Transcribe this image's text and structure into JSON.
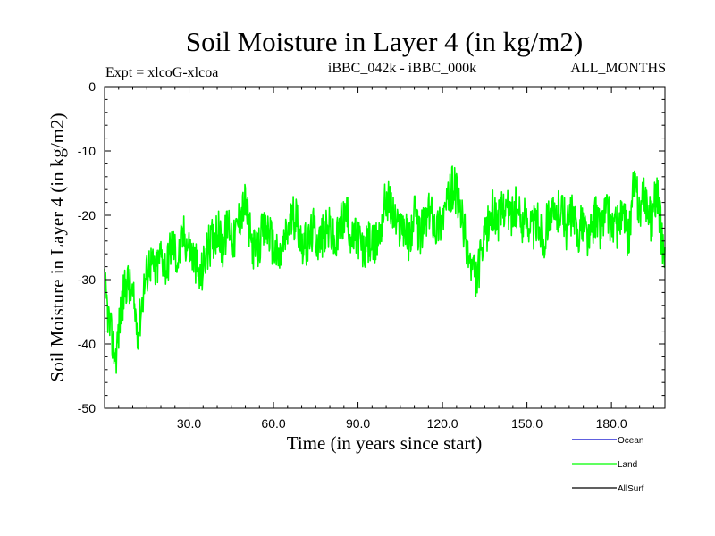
{
  "chart_data": {
    "type": "line",
    "title": "Soil Moisture in Layer 4 (in kg/m2)",
    "subtitle_left": "Expt = xlcoG-xlcoa",
    "subtitle_center": "iBBC_042k - iBBC_000k",
    "subtitle_right": "ALL_MONTHS",
    "xlabel": "Time (in years since start)",
    "ylabel": "Soil Moisture in Layer 4 (in kg/m2)",
    "xlim": [
      0,
      199
    ],
    "ylim": [
      -50,
      0
    ],
    "x_ticks": [
      30,
      60,
      90,
      120,
      150,
      180
    ],
    "x_tick_labels": [
      "30.0",
      "60.0",
      "90.0",
      "120.0",
      "150.0",
      "180.0"
    ],
    "y_ticks": [
      0,
      -10,
      -20,
      -30,
      -40,
      -50
    ],
    "y_tick_labels": [
      "0",
      "-10",
      "-20",
      "-30",
      "-40",
      "-50"
    ],
    "legend_position": "bottom-right",
    "series": [
      {
        "name": "Ocean",
        "color": "#0000cc",
        "points": []
      },
      {
        "name": "Land",
        "color": "#00ff00",
        "points": [
          [
            0,
            -31
          ],
          [
            2,
            -38
          ],
          [
            4,
            -42
          ],
          [
            6,
            -34
          ],
          [
            8,
            -30
          ],
          [
            10,
            -33
          ],
          [
            12,
            -38
          ],
          [
            14,
            -31
          ],
          [
            16,
            -27
          ],
          [
            18,
            -29
          ],
          [
            20,
            -26
          ],
          [
            22,
            -28
          ],
          [
            24,
            -24
          ],
          [
            26,
            -27
          ],
          [
            28,
            -23
          ],
          [
            30,
            -25
          ],
          [
            32,
            -27
          ],
          [
            34,
            -30
          ],
          [
            36,
            -26
          ],
          [
            38,
            -24
          ],
          [
            40,
            -22
          ],
          [
            42,
            -25
          ],
          [
            44,
            -21
          ],
          [
            46,
            -24
          ],
          [
            48,
            -20
          ],
          [
            50,
            -18
          ],
          [
            52,
            -24
          ],
          [
            54,
            -26
          ],
          [
            56,
            -23
          ],
          [
            58,
            -22
          ],
          [
            60,
            -25
          ],
          [
            62,
            -27
          ],
          [
            64,
            -24
          ],
          [
            66,
            -21
          ],
          [
            68,
            -20
          ],
          [
            70,
            -24
          ],
          [
            72,
            -25
          ],
          [
            74,
            -22
          ],
          [
            76,
            -24
          ],
          [
            78,
            -23
          ],
          [
            80,
            -22
          ],
          [
            82,
            -25
          ],
          [
            84,
            -21
          ],
          [
            86,
            -20
          ],
          [
            88,
            -24
          ],
          [
            90,
            -23
          ],
          [
            92,
            -26
          ],
          [
            94,
            -24
          ],
          [
            96,
            -25
          ],
          [
            98,
            -22
          ],
          [
            100,
            -17
          ],
          [
            102,
            -19
          ],
          [
            104,
            -22
          ],
          [
            106,
            -21
          ],
          [
            108,
            -24
          ],
          [
            110,
            -20
          ],
          [
            112,
            -23
          ],
          [
            114,
            -21
          ],
          [
            116,
            -19
          ],
          [
            118,
            -22
          ],
          [
            120,
            -20
          ],
          [
            122,
            -18
          ],
          [
            124,
            -15
          ],
          [
            126,
            -19
          ],
          [
            128,
            -23
          ],
          [
            130,
            -28
          ],
          [
            132,
            -30
          ],
          [
            134,
            -26
          ],
          [
            136,
            -22
          ],
          [
            138,
            -19
          ],
          [
            140,
            -21
          ],
          [
            142,
            -18
          ],
          [
            144,
            -20
          ],
          [
            146,
            -19
          ],
          [
            148,
            -21
          ],
          [
            150,
            -20
          ],
          [
            152,
            -22
          ],
          [
            154,
            -21
          ],
          [
            156,
            -24
          ],
          [
            158,
            -19
          ],
          [
            160,
            -21
          ],
          [
            162,
            -18
          ],
          [
            164,
            -22
          ],
          [
            166,
            -20
          ],
          [
            168,
            -23
          ],
          [
            170,
            -21
          ],
          [
            172,
            -24
          ],
          [
            174,
            -20
          ],
          [
            176,
            -22
          ],
          [
            178,
            -19
          ],
          [
            180,
            -21
          ],
          [
            182,
            -22
          ],
          [
            184,
            -20
          ],
          [
            186,
            -24
          ],
          [
            188,
            -15
          ],
          [
            190,
            -19
          ],
          [
            192,
            -17
          ],
          [
            194,
            -21
          ],
          [
            196,
            -16
          ],
          [
            198,
            -24
          ],
          [
            199,
            -25
          ]
        ]
      },
      {
        "name": "AllSurf",
        "color": "#000000",
        "points": []
      }
    ]
  }
}
